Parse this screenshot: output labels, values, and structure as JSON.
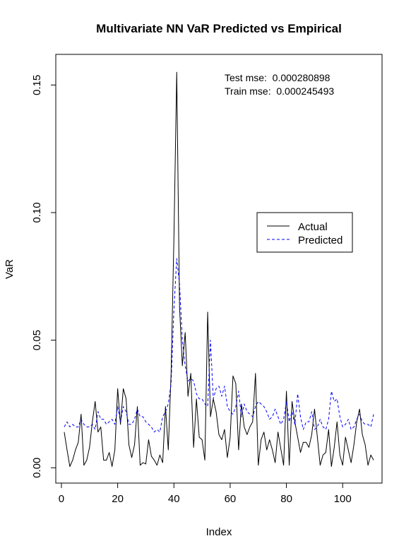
{
  "chart_data": {
    "type": "line",
    "title": "Multivariate NN VaR Predicted vs Empirical",
    "xlabel": "Index",
    "ylabel": "VaR",
    "xlim": [
      -2,
      114
    ],
    "ylim": [
      -0.006,
      0.162
    ],
    "xticks": [
      0,
      20,
      40,
      60,
      80,
      100
    ],
    "yticks": [
      0.0,
      0.05,
      0.1,
      0.15
    ],
    "ytick_labels": [
      "0.00",
      "0.05",
      "0.10",
      "0.15"
    ],
    "grid": false,
    "legend_position": "right",
    "annotations": [
      "Test mse:  0.000280898",
      "Train mse:  0.000245493"
    ],
    "x": [
      1,
      2,
      3,
      4,
      5,
      6,
      7,
      8,
      9,
      10,
      11,
      12,
      13,
      14,
      15,
      16,
      17,
      18,
      19,
      20,
      21,
      22,
      23,
      24,
      25,
      26,
      27,
      28,
      29,
      30,
      31,
      32,
      33,
      34,
      35,
      36,
      37,
      38,
      39,
      40,
      41,
      42,
      43,
      44,
      45,
      46,
      47,
      48,
      49,
      50,
      51,
      52,
      53,
      54,
      55,
      56,
      57,
      58,
      59,
      60,
      61,
      62,
      63,
      64,
      65,
      66,
      67,
      68,
      69,
      70,
      71,
      72,
      73,
      74,
      75,
      76,
      77,
      78,
      79,
      80,
      81,
      82,
      83,
      84,
      85,
      86,
      87,
      88,
      89,
      90,
      91,
      92,
      93,
      94,
      95,
      96,
      97,
      98,
      99,
      100,
      101,
      102,
      103,
      104,
      105,
      106,
      107,
      108,
      109,
      110,
      111
    ],
    "series": [
      {
        "name": "Actual",
        "color": "#000000",
        "dash": "solid",
        "values": [
          0.014,
          0.007,
          0.0005,
          0.003,
          0.007,
          0.01,
          0.021,
          0.001,
          0.003,
          0.008,
          0.018,
          0.026,
          0.014,
          0.016,
          0.003,
          0.003,
          0.006,
          0.0005,
          0.007,
          0.031,
          0.017,
          0.031,
          0.027,
          0.009,
          0.004,
          0.009,
          0.024,
          0.001,
          0.002,
          0.0015,
          0.011,
          0.0045,
          0.003,
          0.001,
          0.005,
          0.002,
          0.024,
          0.007,
          0.037,
          0.09,
          0.155,
          0.063,
          0.04,
          0.053,
          0.028,
          0.037,
          0.008,
          0.027,
          0.012,
          0.011,
          0.003,
          0.061,
          0.02,
          0.027,
          0.022,
          0.013,
          0.011,
          0.015,
          0.004,
          0.012,
          0.036,
          0.033,
          0.007,
          0.025,
          0.016,
          0.013,
          0.016,
          0.018,
          0.037,
          0.001,
          0.011,
          0.014,
          0.007,
          0.011,
          0.007,
          0.002,
          0.014,
          0.0075,
          0.001,
          0.03,
          0.001,
          0.026,
          0.018,
          0.012,
          0.006,
          0.01,
          0.01,
          0.008,
          0.013,
          0.023,
          0.012,
          0.001,
          0.005,
          0.006,
          0.015,
          0.0005,
          0.008,
          0.018,
          0.005,
          0.001,
          0.012,
          0.007,
          0.002,
          0.009,
          0.018,
          0.023,
          0.013,
          0.009,
          0.001,
          0.005,
          0.003
        ]
      },
      {
        "name": "Predicted",
        "color": "#0000ff",
        "dash": "dashed",
        "values": [
          0.016,
          0.018,
          0.016,
          0.017,
          0.016,
          0.016,
          0.019,
          0.017,
          0.016,
          0.016,
          0.017,
          0.015,
          0.022,
          0.019,
          0.019,
          0.017,
          0.018,
          0.019,
          0.017,
          0.024,
          0.018,
          0.024,
          0.022,
          0.017,
          0.017,
          0.019,
          0.023,
          0.02,
          0.02,
          0.018,
          0.017,
          0.016,
          0.014,
          0.015,
          0.014,
          0.02,
          0.022,
          0.025,
          0.033,
          0.062,
          0.082,
          0.072,
          0.05,
          0.04,
          0.034,
          0.035,
          0.034,
          0.029,
          0.027,
          0.027,
          0.025,
          0.024,
          0.05,
          0.027,
          0.031,
          0.032,
          0.028,
          0.032,
          0.024,
          0.022,
          0.021,
          0.024,
          0.03,
          0.02,
          0.025,
          0.022,
          0.021,
          0.02,
          0.024,
          0.026,
          0.025,
          0.024,
          0.022,
          0.019,
          0.02,
          0.023,
          0.02,
          0.017,
          0.019,
          0.026,
          0.018,
          0.022,
          0.017,
          0.029,
          0.02,
          0.015,
          0.018,
          0.018,
          0.022,
          0.015,
          0.016,
          0.019,
          0.016,
          0.015,
          0.019,
          0.03,
          0.026,
          0.027,
          0.02,
          0.016,
          0.017,
          0.019,
          0.015,
          0.016,
          0.019,
          0.021,
          0.018,
          0.017,
          0.017,
          0.016,
          0.021
        ]
      }
    ]
  }
}
